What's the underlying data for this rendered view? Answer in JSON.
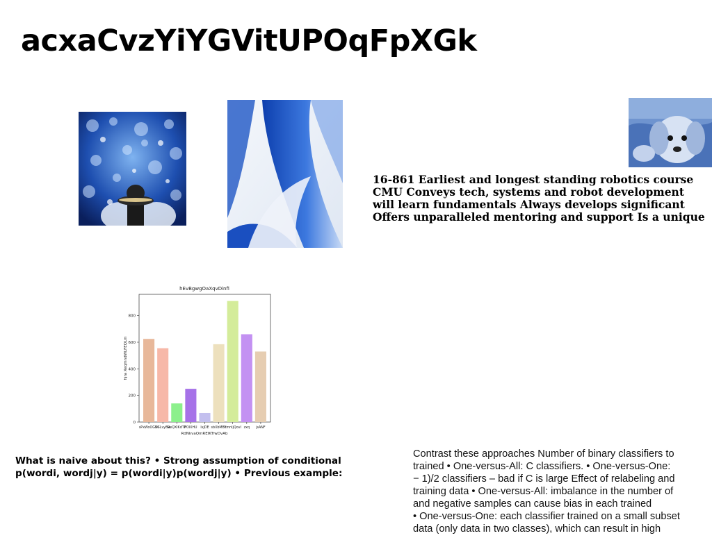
{
  "title": "acxaCvzYiYGVitUPOqFpXGk",
  "course_lines": [
    "16-861 Earliest and longest standing robotics course",
    "CMU Conveys tech, systems and robot development",
    "will learn fundamentals Always develops significant",
    "Offers unparalleled mentoring and support Is a unique"
  ],
  "naive_lines": [
    "What is naive about this? • Strong assumption of conditional",
    "p(wordi, wordj|y) = p(wordi|y)p(wordj|y) • Previous example:"
  ],
  "contrast_lines": [
    "Contrast these approaches Number of binary classifiers to",
    "trained • One-versus-All: C classifiers. • One-versus-One:",
    "− 1)/2 classifiers – bad if C is large Effect of relabeling and",
    "training data • One-versus-All: imbalance in the number of",
    "and negative samples can cause bias in each trained",
    "• One-versus-One: each classifier trained on a small subset",
    "data (only data in two classes), which can result in high"
  ],
  "chart_data": {
    "type": "bar",
    "title": "hEvBgwgOaXqvDinfi",
    "xlabel": "RdNkvaQmREIKTrwDvAb",
    "ylabel": "hjra XeqmndWLFEQLm",
    "categories": [
      "sPxWoOGUt",
      "SGLvyBw",
      "ReQXIKdTP",
      "FOIXHU",
      "lxjDE",
      "sbXbMBk",
      "YmnIjQovI",
      "zxq",
      "jsANF"
    ],
    "values": [
      625,
      555,
      140,
      250,
      68,
      585,
      910,
      660,
      530
    ],
    "colors": [
      "#e8b89a",
      "#f7b8a8",
      "#8cf08c",
      "#a672e8",
      "#c3bfee",
      "#ede0bd",
      "#d4ec9a",
      "#c391f2",
      "#e6cdb1"
    ],
    "ylim": [
      0,
      960
    ],
    "yticks": [
      0,
      200,
      400,
      600,
      800
    ]
  }
}
